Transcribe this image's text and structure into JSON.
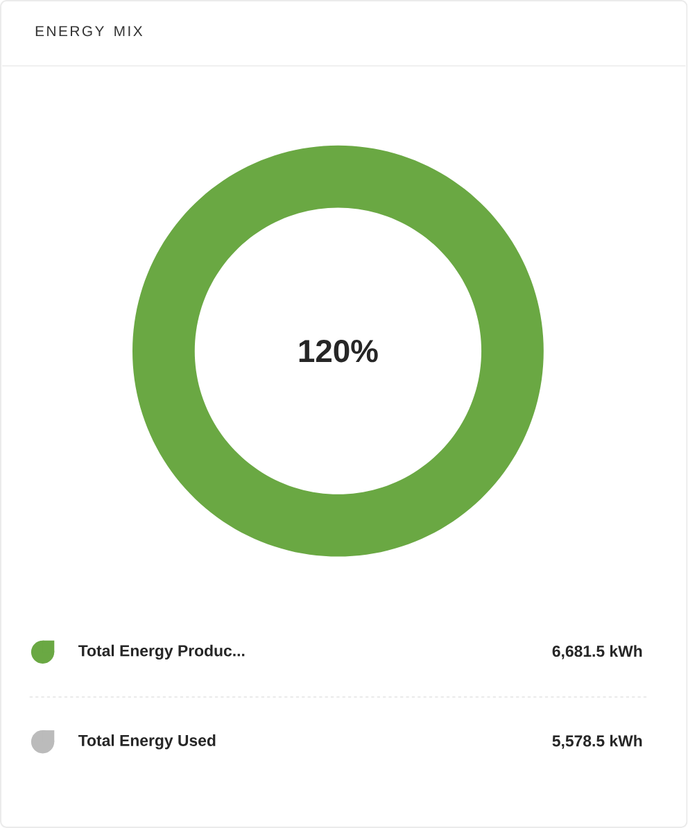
{
  "chart_data": {
    "type": "donut",
    "title": "ENERGY MIX",
    "categories": [
      "Total Energy Produc...",
      "Total Energy Used"
    ],
    "values": [
      100,
      0
    ],
    "colors": [
      "#6aa843",
      "#bbbbbb"
    ],
    "annotations": [
      "120%",
      "6,681.5 kWh",
      "5,578.5 kWh"
    ],
    "legend": "bottom"
  }
}
